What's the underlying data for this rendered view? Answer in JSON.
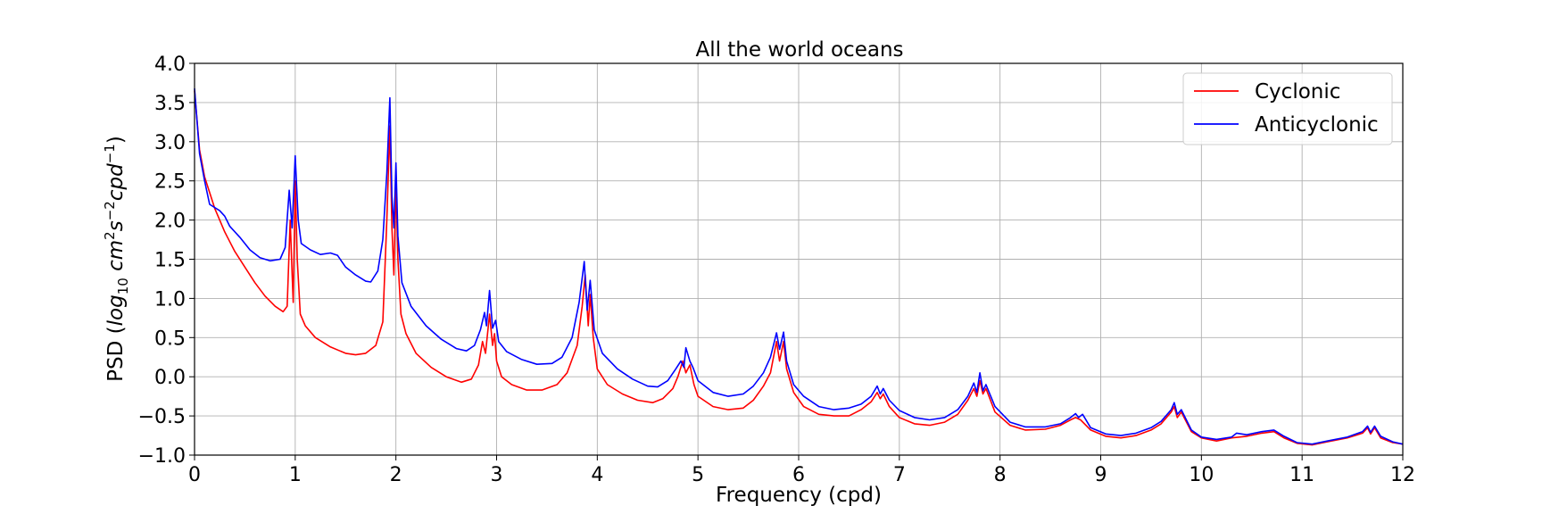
{
  "chart_data": {
    "type": "line",
    "title": "All the world oceans",
    "xlabel": "Frequency (cpd)",
    "ylabel": "PSD (log10 cm2s-2cpd-1)",
    "ylabel_parts": {
      "prefix": "PSD (",
      "log": "log",
      "log_sub": "10",
      "cm": " cm",
      "cm_sup": "2",
      "s": "s",
      "s_sup": "−2",
      "cpd": "cpd",
      "cpd_sup": "−1",
      "suffix": ")"
    },
    "xlim": [
      0,
      12
    ],
    "ylim": [
      -1.0,
      4.0
    ],
    "xticks": [
      "0",
      "1",
      "2",
      "3",
      "4",
      "5",
      "6",
      "7",
      "8",
      "9",
      "10",
      "11",
      "12"
    ],
    "yticks": [
      "−1.0",
      "−0.5",
      "0.0",
      "0.5",
      "1.0",
      "1.5",
      "2.0",
      "2.5",
      "3.0",
      "3.5",
      "4.0"
    ],
    "grid": true,
    "legend_position": "top-right",
    "series": [
      {
        "name": "Cyclonic",
        "color": "#ff0000",
        "points": [
          [
            0.0,
            3.65
          ],
          [
            0.05,
            2.9
          ],
          [
            0.1,
            2.55
          ],
          [
            0.2,
            2.15
          ],
          [
            0.3,
            1.85
          ],
          [
            0.4,
            1.6
          ],
          [
            0.5,
            1.4
          ],
          [
            0.6,
            1.2
          ],
          [
            0.7,
            1.03
          ],
          [
            0.8,
            0.9
          ],
          [
            0.88,
            0.83
          ],
          [
            0.92,
            0.9
          ],
          [
            0.95,
            2.0
          ],
          [
            0.97,
            1.3
          ],
          [
            0.98,
            0.95
          ],
          [
            1.0,
            2.5
          ],
          [
            1.02,
            1.5
          ],
          [
            1.05,
            0.8
          ],
          [
            1.1,
            0.65
          ],
          [
            1.2,
            0.5
          ],
          [
            1.35,
            0.38
          ],
          [
            1.5,
            0.3
          ],
          [
            1.6,
            0.28
          ],
          [
            1.7,
            0.3
          ],
          [
            1.8,
            0.4
          ],
          [
            1.87,
            0.7
          ],
          [
            1.91,
            2.0
          ],
          [
            1.94,
            3.2
          ],
          [
            1.96,
            1.9
          ],
          [
            1.98,
            1.3
          ],
          [
            2.0,
            2.5
          ],
          [
            2.02,
            1.5
          ],
          [
            2.05,
            0.8
          ],
          [
            2.1,
            0.55
          ],
          [
            2.2,
            0.3
          ],
          [
            2.35,
            0.12
          ],
          [
            2.5,
            0.0
          ],
          [
            2.65,
            -0.07
          ],
          [
            2.75,
            -0.03
          ],
          [
            2.82,
            0.15
          ],
          [
            2.86,
            0.45
          ],
          [
            2.89,
            0.3
          ],
          [
            2.93,
            0.8
          ],
          [
            2.96,
            0.4
          ],
          [
            2.98,
            0.55
          ],
          [
            3.0,
            0.2
          ],
          [
            3.05,
            0.0
          ],
          [
            3.15,
            -0.1
          ],
          [
            3.3,
            -0.17
          ],
          [
            3.45,
            -0.17
          ],
          [
            3.6,
            -0.1
          ],
          [
            3.7,
            0.05
          ],
          [
            3.8,
            0.4
          ],
          [
            3.85,
            0.9
          ],
          [
            3.88,
            1.3
          ],
          [
            3.91,
            0.65
          ],
          [
            3.93,
            1.05
          ],
          [
            3.96,
            0.5
          ],
          [
            4.0,
            0.1
          ],
          [
            4.1,
            -0.1
          ],
          [
            4.25,
            -0.22
          ],
          [
            4.4,
            -0.3
          ],
          [
            4.55,
            -0.33
          ],
          [
            4.65,
            -0.28
          ],
          [
            4.75,
            -0.15
          ],
          [
            4.8,
            0.0
          ],
          [
            4.85,
            0.2
          ],
          [
            4.88,
            0.05
          ],
          [
            4.92,
            0.15
          ],
          [
            4.96,
            -0.1
          ],
          [
            5.0,
            -0.25
          ],
          [
            5.15,
            -0.38
          ],
          [
            5.3,
            -0.42
          ],
          [
            5.45,
            -0.4
          ],
          [
            5.55,
            -0.3
          ],
          [
            5.65,
            -0.12
          ],
          [
            5.72,
            0.05
          ],
          [
            5.78,
            0.45
          ],
          [
            5.81,
            0.2
          ],
          [
            5.85,
            0.45
          ],
          [
            5.88,
            0.1
          ],
          [
            5.95,
            -0.2
          ],
          [
            6.05,
            -0.38
          ],
          [
            6.2,
            -0.48
          ],
          [
            6.35,
            -0.5
          ],
          [
            6.5,
            -0.5
          ],
          [
            6.62,
            -0.42
          ],
          [
            6.72,
            -0.32
          ],
          [
            6.78,
            -0.2
          ],
          [
            6.81,
            -0.28
          ],
          [
            6.84,
            -0.22
          ],
          [
            6.9,
            -0.38
          ],
          [
            7.0,
            -0.52
          ],
          [
            7.15,
            -0.6
          ],
          [
            7.3,
            -0.62
          ],
          [
            7.45,
            -0.58
          ],
          [
            7.58,
            -0.48
          ],
          [
            7.68,
            -0.3
          ],
          [
            7.74,
            -0.15
          ],
          [
            7.77,
            -0.25
          ],
          [
            7.8,
            -0.05
          ],
          [
            7.83,
            -0.22
          ],
          [
            7.86,
            -0.15
          ],
          [
            7.95,
            -0.45
          ],
          [
            8.1,
            -0.62
          ],
          [
            8.25,
            -0.68
          ],
          [
            8.45,
            -0.67
          ],
          [
            8.6,
            -0.62
          ],
          [
            8.7,
            -0.55
          ],
          [
            8.75,
            -0.52
          ],
          [
            8.8,
            -0.55
          ],
          [
            8.9,
            -0.68
          ],
          [
            9.05,
            -0.76
          ],
          [
            9.2,
            -0.78
          ],
          [
            9.35,
            -0.75
          ],
          [
            9.5,
            -0.68
          ],
          [
            9.6,
            -0.6
          ],
          [
            9.7,
            -0.45
          ],
          [
            9.73,
            -0.38
          ],
          [
            9.76,
            -0.52
          ],
          [
            9.8,
            -0.45
          ],
          [
            9.9,
            -0.7
          ],
          [
            10.0,
            -0.78
          ],
          [
            10.15,
            -0.82
          ],
          [
            10.3,
            -0.78
          ],
          [
            10.45,
            -0.76
          ],
          [
            10.6,
            -0.72
          ],
          [
            10.72,
            -0.7
          ],
          [
            10.82,
            -0.78
          ],
          [
            10.95,
            -0.85
          ],
          [
            11.1,
            -0.87
          ],
          [
            11.25,
            -0.83
          ],
          [
            11.45,
            -0.78
          ],
          [
            11.6,
            -0.72
          ],
          [
            11.65,
            -0.65
          ],
          [
            11.68,
            -0.73
          ],
          [
            11.72,
            -0.65
          ],
          [
            11.78,
            -0.78
          ],
          [
            11.9,
            -0.84
          ],
          [
            12.0,
            -0.86
          ]
        ]
      },
      {
        "name": "Anticyclonic",
        "color": "#0000ff",
        "points": [
          [
            0.0,
            3.68
          ],
          [
            0.05,
            2.85
          ],
          [
            0.1,
            2.5
          ],
          [
            0.15,
            2.2
          ],
          [
            0.25,
            2.12
          ],
          [
            0.3,
            2.05
          ],
          [
            0.35,
            1.92
          ],
          [
            0.45,
            1.78
          ],
          [
            0.55,
            1.62
          ],
          [
            0.65,
            1.52
          ],
          [
            0.75,
            1.48
          ],
          [
            0.85,
            1.5
          ],
          [
            0.9,
            1.65
          ],
          [
            0.94,
            2.38
          ],
          [
            0.97,
            1.9
          ],
          [
            1.0,
            2.82
          ],
          [
            1.03,
            2.0
          ],
          [
            1.06,
            1.7
          ],
          [
            1.15,
            1.62
          ],
          [
            1.25,
            1.56
          ],
          [
            1.35,
            1.58
          ],
          [
            1.42,
            1.55
          ],
          [
            1.5,
            1.4
          ],
          [
            1.6,
            1.3
          ],
          [
            1.7,
            1.22
          ],
          [
            1.75,
            1.21
          ],
          [
            1.82,
            1.35
          ],
          [
            1.87,
            1.75
          ],
          [
            1.91,
            2.6
          ],
          [
            1.94,
            3.56
          ],
          [
            1.96,
            2.3
          ],
          [
            1.98,
            1.9
          ],
          [
            2.0,
            2.73
          ],
          [
            2.02,
            1.8
          ],
          [
            2.06,
            1.2
          ],
          [
            2.15,
            0.9
          ],
          [
            2.3,
            0.65
          ],
          [
            2.45,
            0.48
          ],
          [
            2.6,
            0.36
          ],
          [
            2.7,
            0.33
          ],
          [
            2.78,
            0.4
          ],
          [
            2.84,
            0.6
          ],
          [
            2.88,
            0.82
          ],
          [
            2.9,
            0.65
          ],
          [
            2.93,
            1.1
          ],
          [
            2.96,
            0.62
          ],
          [
            2.99,
            0.72
          ],
          [
            3.02,
            0.45
          ],
          [
            3.1,
            0.32
          ],
          [
            3.25,
            0.22
          ],
          [
            3.4,
            0.16
          ],
          [
            3.55,
            0.17
          ],
          [
            3.65,
            0.25
          ],
          [
            3.75,
            0.5
          ],
          [
            3.82,
            0.95
          ],
          [
            3.87,
            1.47
          ],
          [
            3.9,
            0.85
          ],
          [
            3.93,
            1.23
          ],
          [
            3.97,
            0.6
          ],
          [
            4.05,
            0.3
          ],
          [
            4.2,
            0.1
          ],
          [
            4.35,
            -0.03
          ],
          [
            4.5,
            -0.12
          ],
          [
            4.6,
            -0.13
          ],
          [
            4.7,
            -0.05
          ],
          [
            4.78,
            0.1
          ],
          [
            4.83,
            0.2
          ],
          [
            4.86,
            0.12
          ],
          [
            4.88,
            0.37
          ],
          [
            4.92,
            0.2
          ],
          [
            4.95,
            0.12
          ],
          [
            5.0,
            -0.05
          ],
          [
            5.15,
            -0.2
          ],
          [
            5.3,
            -0.25
          ],
          [
            5.45,
            -0.22
          ],
          [
            5.55,
            -0.12
          ],
          [
            5.65,
            0.05
          ],
          [
            5.72,
            0.25
          ],
          [
            5.78,
            0.56
          ],
          [
            5.81,
            0.35
          ],
          [
            5.85,
            0.57
          ],
          [
            5.88,
            0.2
          ],
          [
            5.95,
            -0.1
          ],
          [
            6.05,
            -0.25
          ],
          [
            6.2,
            -0.38
          ],
          [
            6.35,
            -0.42
          ],
          [
            6.5,
            -0.4
          ],
          [
            6.62,
            -0.35
          ],
          [
            6.72,
            -0.25
          ],
          [
            6.78,
            -0.12
          ],
          [
            6.81,
            -0.22
          ],
          [
            6.84,
            -0.15
          ],
          [
            6.9,
            -0.3
          ],
          [
            7.0,
            -0.43
          ],
          [
            7.15,
            -0.52
          ],
          [
            7.3,
            -0.55
          ],
          [
            7.45,
            -0.52
          ],
          [
            7.58,
            -0.42
          ],
          [
            7.68,
            -0.25
          ],
          [
            7.74,
            -0.08
          ],
          [
            7.77,
            -0.2
          ],
          [
            7.8,
            0.05
          ],
          [
            7.83,
            -0.18
          ],
          [
            7.86,
            -0.1
          ],
          [
            7.95,
            -0.38
          ],
          [
            8.1,
            -0.58
          ],
          [
            8.25,
            -0.64
          ],
          [
            8.45,
            -0.64
          ],
          [
            8.6,
            -0.6
          ],
          [
            8.7,
            -0.52
          ],
          [
            8.75,
            -0.47
          ],
          [
            8.78,
            -0.52
          ],
          [
            8.82,
            -0.48
          ],
          [
            8.9,
            -0.65
          ],
          [
            9.05,
            -0.73
          ],
          [
            9.2,
            -0.75
          ],
          [
            9.35,
            -0.72
          ],
          [
            9.5,
            -0.65
          ],
          [
            9.6,
            -0.57
          ],
          [
            9.7,
            -0.42
          ],
          [
            9.73,
            -0.33
          ],
          [
            9.76,
            -0.48
          ],
          [
            9.8,
            -0.42
          ],
          [
            9.9,
            -0.68
          ],
          [
            10.0,
            -0.77
          ],
          [
            10.15,
            -0.8
          ],
          [
            10.3,
            -0.77
          ],
          [
            10.35,
            -0.72
          ],
          [
            10.45,
            -0.74
          ],
          [
            10.6,
            -0.7
          ],
          [
            10.72,
            -0.68
          ],
          [
            10.82,
            -0.76
          ],
          [
            10.95,
            -0.84
          ],
          [
            11.1,
            -0.86
          ],
          [
            11.25,
            -0.82
          ],
          [
            11.45,
            -0.77
          ],
          [
            11.6,
            -0.7
          ],
          [
            11.65,
            -0.63
          ],
          [
            11.68,
            -0.71
          ],
          [
            11.72,
            -0.63
          ],
          [
            11.78,
            -0.76
          ],
          [
            11.9,
            -0.83
          ],
          [
            12.0,
            -0.86
          ]
        ]
      }
    ]
  }
}
